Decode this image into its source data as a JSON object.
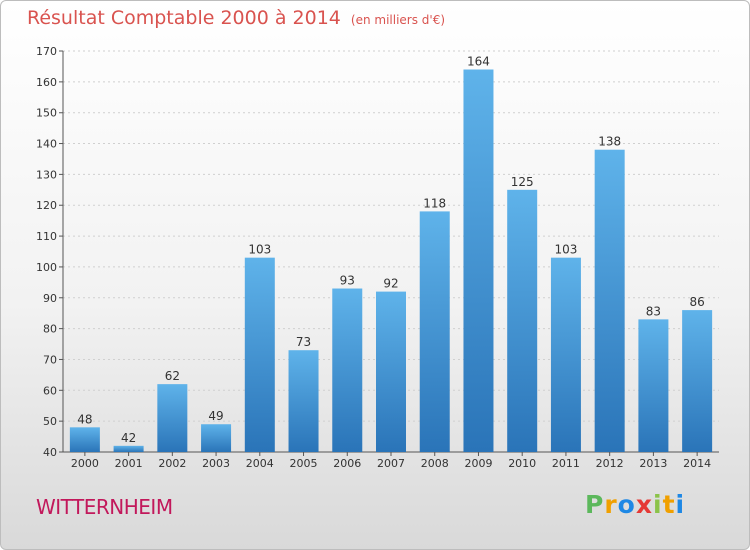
{
  "chart_data": {
    "type": "bar",
    "title": "Résultat Comptable 2000 à 2014",
    "subtitle": "(en milliers d'€)",
    "xlabel": "",
    "ylabel": "",
    "categories": [
      "2000",
      "2001",
      "2002",
      "2003",
      "2004",
      "2005",
      "2006",
      "2007",
      "2008",
      "2009",
      "2010",
      "2011",
      "2012",
      "2013",
      "2014"
    ],
    "values": [
      48,
      42,
      62,
      49,
      103,
      73,
      93,
      92,
      118,
      164,
      125,
      103,
      138,
      83,
      86
    ],
    "ylim": [
      40,
      170
    ],
    "yticks": [
      40,
      50,
      60,
      70,
      80,
      90,
      100,
      110,
      120,
      130,
      140,
      150,
      160,
      170
    ],
    "grid": true,
    "data_labels": true,
    "bar_color": "#3d94d6",
    "bar_color_top": "#5fb3ea",
    "bar_color_bottom": "#2a74b8"
  },
  "footer": {
    "commune": "WITTERNHEIM",
    "logo_letters": [
      "P",
      "r",
      "o",
      "x",
      "i",
      "t",
      "i"
    ],
    "logo_colors": [
      "#5cb85c",
      "#f0a000",
      "#1e88e5",
      "#e53935",
      "#8bc34a",
      "#f0a000",
      "#1e88e5"
    ]
  },
  "colors": {
    "title": "#d9534f",
    "commune": "#c2185b"
  }
}
